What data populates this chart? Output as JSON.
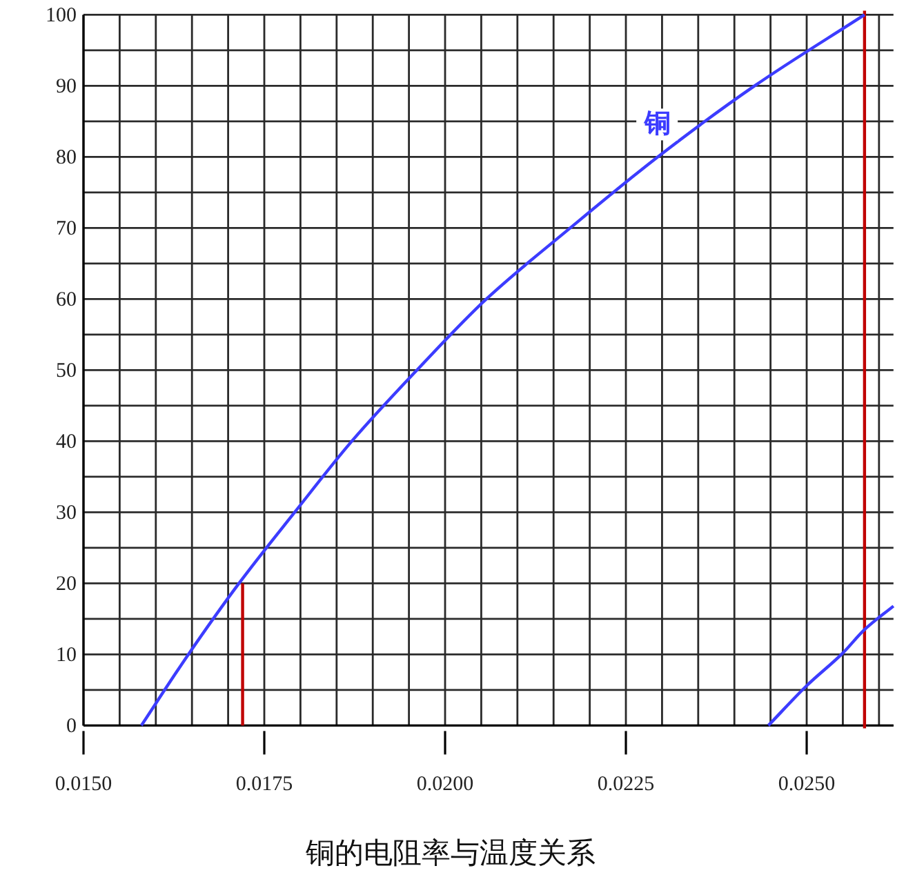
{
  "chart_data": {
    "type": "line",
    "title": "铜的电阻率与温度关系",
    "xlim": [
      0.015,
      0.0262
    ],
    "ylim": [
      0,
      100
    ],
    "xticks": [
      {
        "value": 0.015,
        "label": "0.0150"
      },
      {
        "value": 0.0155,
        "label": null
      },
      {
        "value": 0.016,
        "label": null
      },
      {
        "value": 0.0165,
        "label": null
      },
      {
        "value": 0.017,
        "label": null
      },
      {
        "value": 0.0175,
        "label": "0.0175"
      },
      {
        "value": 0.018,
        "label": null
      },
      {
        "value": 0.0185,
        "label": null
      },
      {
        "value": 0.019,
        "label": null
      },
      {
        "value": 0.0195,
        "label": null
      },
      {
        "value": 0.02,
        "label": "0.0200"
      },
      {
        "value": 0.0205,
        "label": null
      },
      {
        "value": 0.021,
        "label": null
      },
      {
        "value": 0.0215,
        "label": null
      },
      {
        "value": 0.022,
        "label": null
      },
      {
        "value": 0.0225,
        "label": "0.0225"
      },
      {
        "value": 0.023,
        "label": null
      },
      {
        "value": 0.0235,
        "label": null
      },
      {
        "value": 0.024,
        "label": null
      },
      {
        "value": 0.0245,
        "label": null
      },
      {
        "value": 0.025,
        "label": "0.0250"
      },
      {
        "value": 0.0255,
        "label": null
      },
      {
        "value": 0.026,
        "label": null
      }
    ],
    "yticks": [
      0,
      {
        "value": 5,
        "label": null
      },
      10,
      {
        "value": 15,
        "label": null
      },
      20,
      {
        "value": 25,
        "label": null
      },
      30,
      {
        "value": 35,
        "label": null
      },
      40,
      {
        "value": 45,
        "label": null
      },
      50,
      {
        "value": 55,
        "label": null
      },
      60,
      {
        "value": 65,
        "label": null
      },
      70,
      {
        "value": 75,
        "label": null
      },
      80,
      {
        "value": 85,
        "label": null
      },
      90,
      {
        "value": 95,
        "label": null
      },
      100
    ],
    "grid": true,
    "series": [
      {
        "name": "铜",
        "color": "#3c3cff",
        "x": [
          0.0158,
          0.01645,
          0.01715,
          0.01792,
          0.01871,
          0.01961,
          0.02057,
          0.02173,
          0.02294,
          0.02428,
          0.0258
        ],
        "values": [
          0,
          10,
          20,
          30,
          40,
          50,
          60,
          70,
          80,
          90,
          100
        ]
      },
      {
        "color": "#3c3cff",
        "x": [
          0.02447,
          0.025,
          0.0255,
          0.0258,
          0.0262
        ],
        "values": [
          0,
          5.6,
          10.2,
          13.5,
          16.8
        ]
      },
      {
        "type": "line",
        "color": "#c00000",
        "x": [
          0.0172,
          0.0172
        ],
        "values": [
          0,
          20
        ]
      }
    ],
    "ref_lines": [
      {
        "axis": "x",
        "value": 0.0258,
        "color": "#c00000"
      }
    ]
  }
}
